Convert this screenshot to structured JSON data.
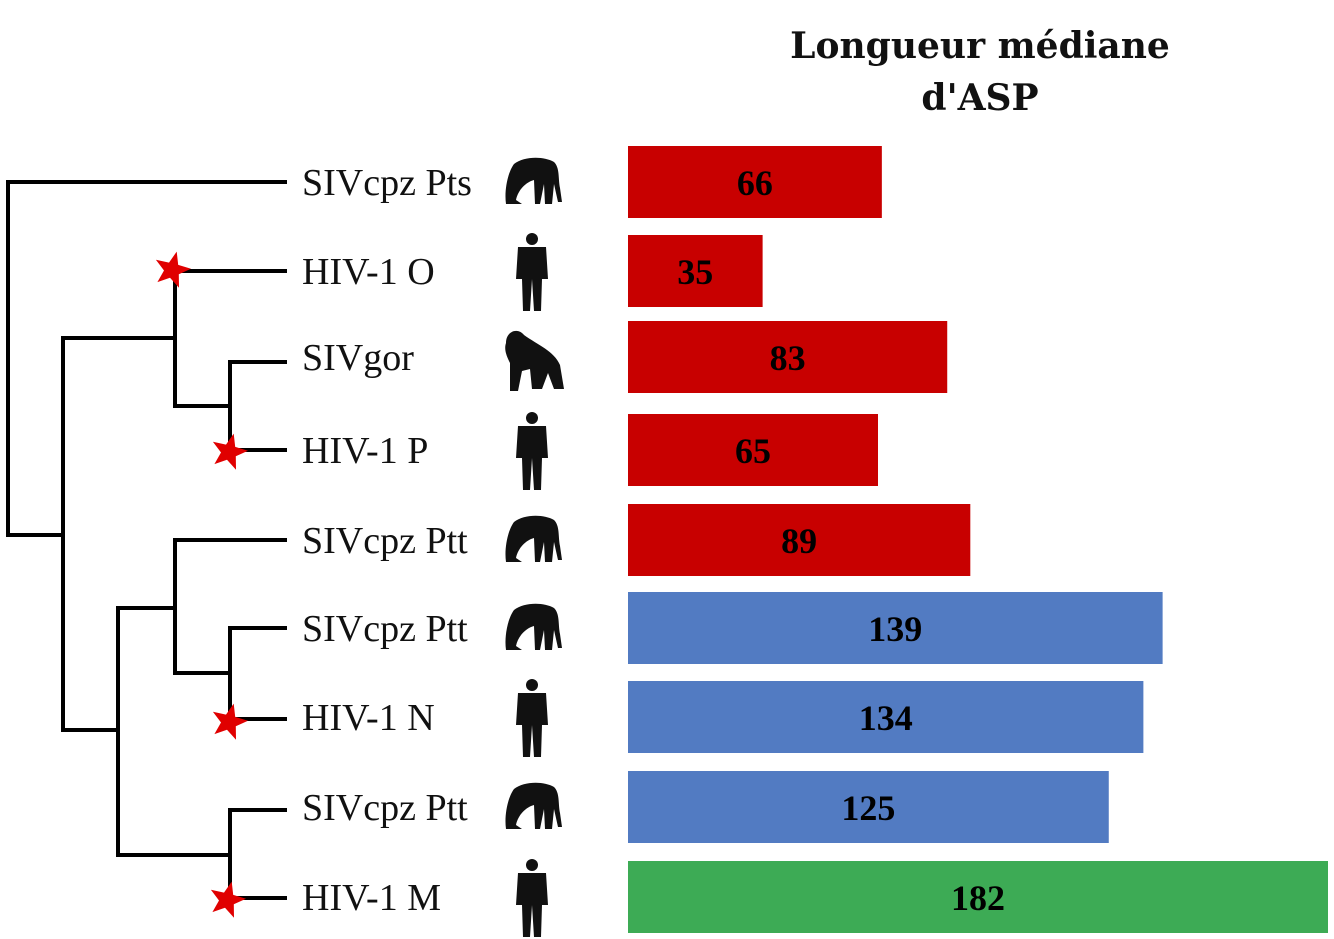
{
  "chart_data": {
    "type": "bar",
    "orientation": "horizontal",
    "title": "Longueur médiane d'ASP",
    "title_lines": [
      "Longueur médiane",
      "d'ASP"
    ],
    "xlabel": "",
    "ylabel": "",
    "xlim": [
      0,
      182
    ],
    "grid": false,
    "legend": "none",
    "categories": [
      "SIVcpz Pts",
      "HIV-1 O",
      "SIVgor",
      "HIV-1 P",
      "SIVcpz Ptt",
      "SIVcpz Ptt",
      "HIV-1 N",
      "SIVcpz Ptt",
      "HIV-1 M"
    ],
    "values": [
      66,
      35,
      83,
      65,
      89,
      139,
      134,
      125,
      182
    ],
    "hosts": [
      "chimpanzee",
      "human",
      "gorilla",
      "human",
      "chimpanzee",
      "chimpanzee",
      "human",
      "chimpanzee",
      "human"
    ],
    "bar_colors": [
      "#c80000",
      "#c80000",
      "#c80000",
      "#c80000",
      "#c80000",
      "#527bc2",
      "#527bc2",
      "#527bc2",
      "#3dab55"
    ],
    "transmission_events": [
      "HIV-1 O",
      "HIV-1 P",
      "HIV-1 N",
      "HIV-1 M"
    ],
    "tree": "(SIVcpz Pts,((HIV-1 O,(SIVgor,HIV-1 P)),((SIVcpz Ptt,(SIVcpz Ptt,HIV-1 N)),(SIVcpz Ptt,HIV-1 M))))"
  },
  "colors": {
    "red": "#c80000",
    "blue": "#527bc2",
    "green": "#3dab55",
    "star": "#e00000"
  }
}
